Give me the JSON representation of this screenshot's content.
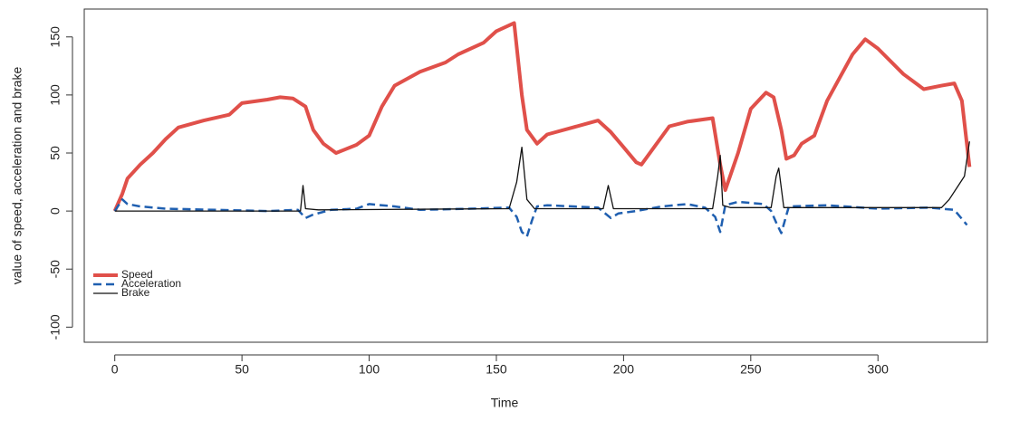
{
  "chart_data": {
    "type": "line",
    "x_label": "Time",
    "y_label": "value of speed, acceleration and brake",
    "xlim": [
      -12,
      343
    ],
    "ylim": [
      -113,
      174
    ],
    "xticks": [
      0,
      50,
      100,
      150,
      200,
      250,
      300
    ],
    "yticks": [
      -100,
      -50,
      0,
      50,
      100,
      150
    ],
    "legend": "bottom-left",
    "series": [
      {
        "name": "Speed",
        "color": "#e0504a",
        "width": 4,
        "dash": "solid",
        "x": [
          0,
          3,
          5,
          10,
          15,
          20,
          25,
          35,
          45,
          50,
          60,
          65,
          70,
          75,
          78,
          82,
          87,
          95,
          100,
          105,
          110,
          120,
          130,
          135,
          145,
          150,
          157,
          160,
          162,
          166,
          170,
          180,
          190,
          195,
          200,
          205,
          207,
          212,
          218,
          225,
          235,
          238,
          240,
          245,
          250,
          256,
          259,
          262,
          264,
          267,
          270,
          275,
          280,
          285,
          290,
          295,
          300,
          310,
          318,
          325,
          330,
          333,
          336
        ],
        "values": [
          0,
          15,
          28,
          40,
          50,
          62,
          72,
          78,
          83,
          93,
          96,
          98,
          97,
          90,
          70,
          58,
          50,
          57,
          65,
          90,
          108,
          120,
          128,
          135,
          145,
          155,
          162,
          100,
          70,
          58,
          66,
          72,
          78,
          68,
          55,
          42,
          40,
          55,
          73,
          77,
          80,
          40,
          18,
          50,
          88,
          102,
          98,
          70,
          45,
          48,
          58,
          65,
          95,
          115,
          135,
          148,
          140,
          118,
          105,
          108,
          110,
          95,
          38
        ]
      },
      {
        "name": "Acceleration",
        "color": "#1f5fb0",
        "width": 2.5,
        "dash": "dashed",
        "x": [
          0,
          3,
          5,
          10,
          20,
          40,
          60,
          72,
          75,
          78,
          85,
          95,
          100,
          110,
          120,
          140,
          155,
          158,
          160,
          162,
          164,
          166,
          170,
          190,
          195,
          198,
          205,
          215,
          225,
          232,
          236,
          238,
          240,
          245,
          255,
          258,
          260,
          262,
          265,
          280,
          300,
          320,
          330,
          335
        ],
        "values": [
          0,
          10,
          6,
          4,
          2,
          1,
          0,
          1,
          -6,
          -3,
          1,
          2,
          6,
          4,
          1,
          2,
          3,
          -5,
          -18,
          -22,
          -8,
          4,
          5,
          3,
          -6,
          -2,
          0,
          4,
          6,
          3,
          -5,
          -18,
          5,
          8,
          6,
          0,
          -10,
          -19,
          4,
          5,
          2,
          3,
          1,
          -12
        ]
      },
      {
        "name": "Brake",
        "color": "#111111",
        "width": 1.3,
        "dash": "solid",
        "x": [
          0,
          73,
          74,
          75,
          80,
          155,
          158,
          160,
          162,
          165,
          192,
          194,
          196,
          235,
          237,
          238,
          239,
          242,
          258,
          260,
          261,
          263,
          325,
          328,
          331,
          334,
          336
        ],
        "values": [
          0,
          0,
          22,
          2,
          1,
          2,
          25,
          55,
          10,
          2,
          2,
          22,
          2,
          2,
          30,
          48,
          5,
          3,
          3,
          30,
          37,
          3,
          3,
          10,
          20,
          30,
          60
        ]
      }
    ]
  }
}
